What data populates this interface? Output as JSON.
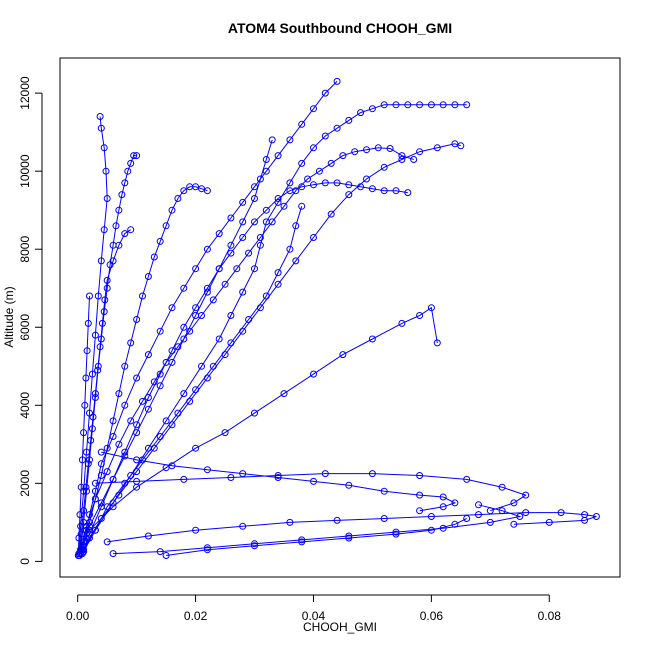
{
  "chart_data": {
    "type": "scatter",
    "title": "ATOM4 Southbound CHOOH_GMI",
    "xlabel": "CHOOH_GMI",
    "ylabel": "Altitude (m)",
    "xlim": [
      -0.003,
      0.092
    ],
    "ylim": [
      -400,
      12900
    ],
    "x_ticks": [
      0.0,
      0.02,
      0.04,
      0.06,
      0.08
    ],
    "x_tick_labels": [
      "0.00",
      "0.02",
      "0.04",
      "0.06",
      "0.08"
    ],
    "y_ticks": [
      0,
      2000,
      4000,
      6000,
      8000,
      10000,
      12000
    ],
    "y_tick_labels": [
      "0",
      "2000",
      "4000",
      "6000",
      "8000",
      "10000",
      "12000"
    ],
    "marker": "open-circle",
    "connected": true,
    "color": "#0000ff",
    "grid": false,
    "series": [
      {
        "x": [
          0.0005,
          0.001,
          0.0015,
          0.002,
          0.003,
          0.004,
          0.006,
          0.008,
          0.01,
          0.012,
          0.014,
          0.016,
          0.018,
          0.02,
          0.022,
          0.024,
          0.026,
          0.028,
          0.03,
          0.032,
          0.034,
          0.036,
          0.038,
          0.04,
          0.042,
          0.044
        ],
        "y": [
          200,
          500,
          800,
          1200,
          1800,
          2500,
          3200,
          4000,
          4700,
          5300,
          5900,
          6500,
          7000,
          7500,
          8000,
          8400,
          8800,
          9200,
          9600,
          10000,
          10400,
          10800,
          11200,
          11600,
          12000,
          12300
        ]
      },
      {
        "x": [
          0.0005,
          0.0015,
          0.003,
          0.005,
          0.007,
          0.009,
          0.011,
          0.013,
          0.015,
          0.017,
          0.019,
          0.021,
          0.023,
          0.025,
          0.027,
          0.029,
          0.031,
          0.033,
          0.035,
          0.037,
          0.039,
          0.041,
          0.043,
          0.045,
          0.047,
          0.049,
          0.051,
          0.053,
          0.055,
          0.057
        ],
        "y": [
          300,
          900,
          1600,
          2300,
          3000,
          3600,
          4100,
          4600,
          5100,
          5500,
          5900,
          6300,
          6700,
          7100,
          7500,
          7900,
          8300,
          8700,
          9100,
          9500,
          9800,
          10000,
          10200,
          10400,
          10500,
          10550,
          10600,
          10580,
          10400,
          10300
        ]
      },
      {
        "x": [
          0.0008,
          0.002,
          0.004,
          0.006,
          0.008,
          0.01,
          0.012,
          0.014,
          0.016,
          0.018,
          0.02,
          0.022,
          0.024,
          0.026,
          0.028,
          0.03,
          0.032,
          0.034,
          0.036,
          0.038,
          0.04,
          0.042,
          0.044,
          0.046,
          0.048,
          0.05,
          0.052,
          0.054,
          0.056
        ],
        "y": [
          200,
          700,
          1400,
          2100,
          2800,
          3500,
          4200,
          4800,
          5400,
          6000,
          6500,
          7000,
          7500,
          7900,
          8300,
          8700,
          9000,
          9300,
          9500,
          9600,
          9650,
          9700,
          9700,
          9650,
          9600,
          9550,
          9500,
          9500,
          9450
        ]
      },
      {
        "x": [
          0.001,
          0.002,
          0.003,
          0.004,
          0.005,
          0.006,
          0.007,
          0.008,
          0.009,
          0.01,
          0.011,
          0.012,
          0.013,
          0.014,
          0.015,
          0.016,
          0.017,
          0.018,
          0.019,
          0.02,
          0.021,
          0.022
        ],
        "y": [
          400,
          1000,
          1600,
          2200,
          2900,
          3600,
          4300,
          5000,
          5600,
          6200,
          6800,
          7300,
          7800,
          8200,
          8600,
          9000,
          9300,
          9500,
          9600,
          9600,
          9550,
          9500
        ]
      },
      {
        "x": [
          0.0005,
          0.001,
          0.0015,
          0.002,
          0.0025,
          0.003,
          0.0035,
          0.004,
          0.0045,
          0.005,
          0.0055,
          0.006,
          0.0065,
          0.007,
          0.0075,
          0.008,
          0.0085,
          0.009,
          0.0095,
          0.01
        ],
        "y": [
          300,
          1000,
          1800,
          2600,
          3400,
          4200,
          5000,
          5700,
          6400,
          7000,
          7600,
          8100,
          8600,
          9000,
          9400,
          9700,
          10000,
          10200,
          10400,
          10400
        ]
      },
      {
        "x": [
          0.0002,
          0.0005,
          0.001,
          0.0015,
          0.002,
          0.0025,
          0.003,
          0.0035,
          0.004,
          0.0045,
          0.005,
          0.0048,
          0.0045,
          0.004,
          0.0038
        ],
        "y": [
          200,
          900,
          1800,
          2800,
          3800,
          4800,
          5800,
          6800,
          7700,
          8500,
          9300,
          10000,
          10600,
          11100,
          11400
        ]
      },
      {
        "x": [
          0.001,
          0.003,
          0.006,
          0.009,
          0.012,
          0.015,
          0.018,
          0.021,
          0.024,
          0.026,
          0.028,
          0.03,
          0.031,
          0.032,
          0.034,
          0.036,
          0.038,
          0.04,
          0.042,
          0.044,
          0.046,
          0.048,
          0.05,
          0.052,
          0.054,
          0.056,
          0.058,
          0.06,
          0.062,
          0.064,
          0.066
        ],
        "y": [
          300,
          800,
          1500,
          2200,
          2900,
          3600,
          4300,
          5000,
          5700,
          6300,
          6900,
          7500,
          8100,
          8700,
          9200,
          9700,
          10200,
          10600,
          10900,
          11100,
          11300,
          11500,
          11600,
          11700,
          11700,
          11700,
          11700,
          11700,
          11700,
          11700,
          11700
        ]
      },
      {
        "x": [
          0.0005,
          0.002,
          0.004,
          0.007,
          0.01,
          0.013,
          0.016,
          0.019,
          0.022,
          0.025,
          0.028,
          0.031,
          0.034,
          0.037,
          0.04,
          0.043,
          0.046,
          0.049,
          0.052,
          0.055,
          0.058,
          0.061,
          0.064,
          0.065
        ],
        "y": [
          200,
          600,
          1100,
          1700,
          2300,
          2900,
          3500,
          4100,
          4700,
          5300,
          5900,
          6500,
          7100,
          7700,
          8300,
          8900,
          9400,
          9800,
          10100,
          10300,
          10500,
          10600,
          10700,
          10650
        ]
      },
      {
        "x": [
          0.002,
          0.006,
          0.01,
          0.015,
          0.02,
          0.025,
          0.03,
          0.035,
          0.04,
          0.045,
          0.05,
          0.055,
          0.058,
          0.06,
          0.061
        ],
        "y": [
          800,
          1400,
          1900,
          2400,
          2900,
          3300,
          3800,
          4300,
          4800,
          5300,
          5700,
          6100,
          6300,
          6500,
          5600
        ]
      },
      {
        "x": [
          0.004,
          0.01,
          0.016,
          0.022,
          0.028,
          0.034,
          0.04,
          0.046,
          0.052,
          0.058,
          0.062,
          0.064,
          0.062,
          0.058
        ],
        "y": [
          2800,
          2600,
          2450,
          2350,
          2250,
          2150,
          2050,
          1950,
          1800,
          1700,
          1650,
          1500,
          1400,
          1300
        ]
      },
      {
        "x": [
          0.003,
          0.01,
          0.018,
          0.026,
          0.034,
          0.042,
          0.05,
          0.058,
          0.066,
          0.072,
          0.076,
          0.074,
          0.07
        ],
        "y": [
          2000,
          2050,
          2100,
          2150,
          2200,
          2250,
          2250,
          2200,
          2100,
          1900,
          1700,
          1500,
          1300
        ]
      },
      {
        "x": [
          0.005,
          0.012,
          0.02,
          0.028,
          0.036,
          0.044,
          0.052,
          0.06,
          0.068,
          0.076,
          0.082,
          0.086,
          0.088,
          0.086,
          0.08,
          0.074
        ],
        "y": [
          500,
          650,
          800,
          900,
          1000,
          1050,
          1100,
          1150,
          1200,
          1250,
          1250,
          1200,
          1150,
          1050,
          1000,
          950
        ]
      },
      {
        "x": [
          0.006,
          0.014,
          0.022,
          0.03,
          0.038,
          0.046,
          0.054,
          0.062,
          0.07,
          0.075,
          0.072,
          0.068
        ],
        "y": [
          200,
          250,
          350,
          450,
          550,
          650,
          750,
          850,
          1000,
          1150,
          1300,
          1450
        ]
      },
      {
        "x": [
          0.015,
          0.022,
          0.03,
          0.038,
          0.046,
          0.054,
          0.06,
          0.064,
          0.066
        ],
        "y": [
          150,
          300,
          400,
          500,
          600,
          700,
          800,
          950,
          1100
        ]
      },
      {
        "x": [
          0.0003,
          0.0006,
          0.001,
          0.0014,
          0.0018,
          0.0022,
          0.0026,
          0.003,
          0.0034,
          0.0038,
          0.0042,
          0.0046,
          0.005,
          0.006,
          0.007,
          0.008,
          0.009
        ],
        "y": [
          150,
          700,
          1300,
          1900,
          2500,
          3100,
          3700,
          4300,
          4900,
          5500,
          6100,
          6700,
          7200,
          7700,
          8100,
          8400,
          8500
        ]
      },
      {
        "x": [
          0.0001,
          0.0002,
          0.0004,
          0.0006,
          0.0008,
          0.001,
          0.0012,
          0.0014,
          0.0016,
          0.0018,
          0.002
        ],
        "y": [
          150,
          600,
          1200,
          1900,
          2600,
          3300,
          4000,
          4700,
          5400,
          6100,
          6800
        ]
      },
      {
        "x": [
          0.001,
          0.003,
          0.005,
          0.008,
          0.011,
          0.014,
          0.017,
          0.02,
          0.023,
          0.026,
          0.029,
          0.032,
          0.034,
          0.036,
          0.037,
          0.038
        ],
        "y": [
          250,
          800,
          1400,
          2000,
          2600,
          3200,
          3800,
          4400,
          5000,
          5600,
          6200,
          6800,
          7400,
          8000,
          8600,
          9100
        ]
      },
      {
        "x": [
          0.0008,
          0.002,
          0.004,
          0.006,
          0.008,
          0.01,
          0.012,
          0.014,
          0.016,
          0.018,
          0.02,
          0.022,
          0.024,
          0.026,
          0.028,
          0.03,
          0.031,
          0.032,
          0.033
        ],
        "y": [
          300,
          900,
          1500,
          2100,
          2700,
          3300,
          3900,
          4500,
          5100,
          5700,
          6300,
          6900,
          7500,
          8100,
          8700,
          9300,
          9800,
          10300,
          10800
        ]
      }
    ]
  }
}
